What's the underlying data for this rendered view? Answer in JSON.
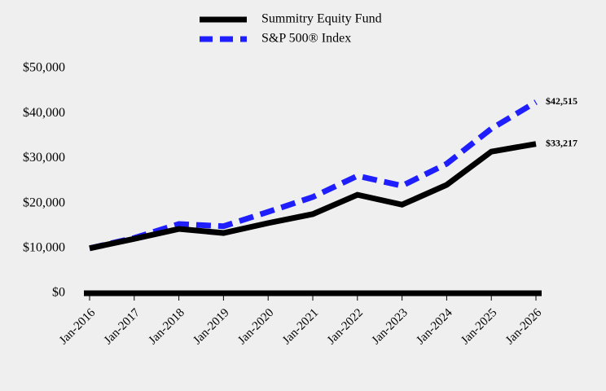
{
  "chart_data": {
    "type": "line",
    "categories": [
      "Jan-2016",
      "Jan-2017",
      "Jan-2018",
      "Jan-2019",
      "Jan-2020",
      "Jan-2021",
      "Jan-2022",
      "Jan-2023",
      "Jan-2024",
      "Jan-2025",
      "Jan-2026"
    ],
    "series": [
      {
        "name": "Summitry Equity Fund",
        "color": "#000000",
        "dashed": false,
        "values": [
          10000,
          12100,
          14300,
          13400,
          15600,
          17600,
          21900,
          19700,
          24100,
          31500,
          33217
        ],
        "value_labels": [
          null,
          null,
          null,
          null,
          null,
          null,
          null,
          null,
          null,
          null,
          "$33,217"
        ]
      },
      {
        "name": "S&P 500® Index",
        "color": "#1e1eff",
        "dashed": true,
        "values": [
          10000,
          12300,
          15400,
          14900,
          18100,
          21400,
          26100,
          23900,
          28800,
          36600,
          42515
        ],
        "value_labels": [
          null,
          null,
          null,
          null,
          null,
          null,
          null,
          null,
          null,
          null,
          "$42,515"
        ]
      }
    ],
    "ylim": [
      0,
      50000
    ],
    "yticks": [
      {
        "value": 0,
        "label": "$0"
      },
      {
        "value": 10000,
        "label": "$10,000"
      },
      {
        "value": 20000,
        "label": "$20,000"
      },
      {
        "value": 30000,
        "label": "$30,000"
      },
      {
        "value": 40000,
        "label": "$40,000"
      },
      {
        "value": 50000,
        "label": "$50,000"
      }
    ],
    "grid": false
  }
}
